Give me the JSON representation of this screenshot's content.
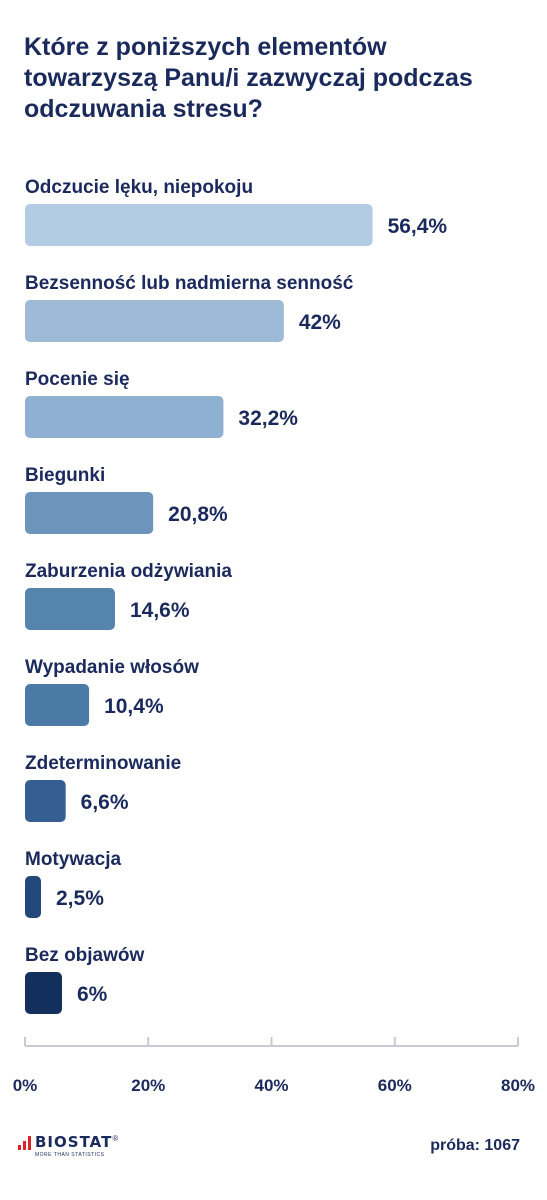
{
  "chart_data": {
    "type": "bar",
    "orientation": "horizontal",
    "title": "Które z poniższych elementów towarzyszą Panu/i zazwyczaj podczas odczuwania stresu?",
    "categories": [
      "Odczucie lęku, niepokoju",
      "Bezsenność lub nadmierna senność",
      "Pocenie się",
      "Biegunki",
      "Zaburzenia odżywiania",
      "Wypadanie włosów",
      "Zdeterminowanie",
      "Motywacja",
      "Bez objawów"
    ],
    "values": [
      56.4,
      42,
      32.2,
      20.8,
      14.6,
      10.4,
      6.6,
      2.5,
      6
    ],
    "value_labels": [
      "56,4%",
      "42%",
      "32,2%",
      "20,8%",
      "14,6%",
      "10,4%",
      "6,6%",
      "2,5%",
      "6%"
    ],
    "colors": [
      "#b4cce3",
      "#9dbad7",
      "#8eb0d1",
      "#6d95bb",
      "#5584ad",
      "#4c7aa6",
      "#355f92",
      "#23477a",
      "#132f5c"
    ],
    "xlim": [
      0,
      80
    ],
    "x_ticks": [
      0,
      20,
      40,
      60,
      80
    ],
    "x_tick_labels": [
      "0%",
      "20%",
      "40%",
      "60%",
      "80%"
    ],
    "grid": false,
    "legend": "none"
  },
  "footer": {
    "logo_text": "BIOSTAT",
    "logo_registered": "®",
    "logo_tagline": "MORE THAN STATISTICS",
    "sample": "próba: 1067"
  },
  "colors": {
    "text": "#1b2a5c",
    "axis": "#c8cbd2",
    "logo_accent": "#d8232a"
  }
}
